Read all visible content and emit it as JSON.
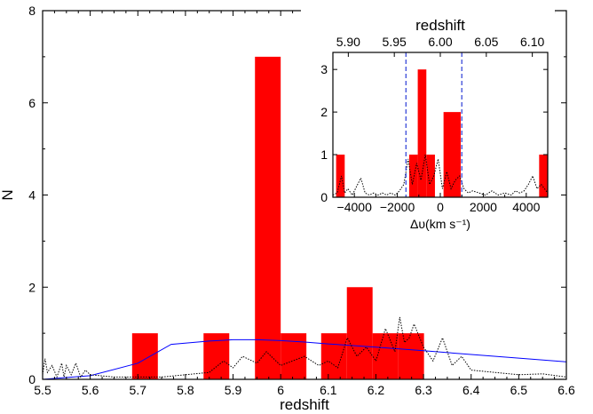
{
  "chart_data": [
    {
      "type": "bar",
      "xlabel": "redshift",
      "ylabel": "N",
      "xlim": [
        5.5,
        6.6
      ],
      "ylim": [
        0,
        8
      ],
      "xticks": [
        5.5,
        5.6,
        5.7,
        5.8,
        5.9,
        6.0,
        6.1,
        6.2,
        6.3,
        6.4,
        6.5,
        6.6
      ],
      "xtick_labels": [
        "5.5",
        "5.6",
        "5.7",
        "5.8",
        "5.9",
        "6",
        "6.1",
        "6.2",
        "6.3",
        "6.4",
        "6.5",
        "6.6"
      ],
      "yticks": [
        0,
        2,
        4,
        6,
        8
      ],
      "ytick_labels": [
        "0",
        "2",
        "4",
        "6",
        "8"
      ],
      "bar_width": 0.054,
      "bars": [
        {
          "x": 5.715,
          "value": 1
        },
        {
          "x": 5.865,
          "value": 1
        },
        {
          "x": 5.973,
          "value": 7
        },
        {
          "x": 6.027,
          "value": 1
        },
        {
          "x": 6.112,
          "value": 1
        },
        {
          "x": 6.166,
          "value": 2
        },
        {
          "x": 6.22,
          "value": 1
        },
        {
          "x": 6.274,
          "value": 1
        }
      ],
      "series": [
        {
          "style": "solid",
          "color": "#0000ff",
          "x": [
            5.5,
            5.6,
            5.7,
            5.77,
            5.85,
            5.9,
            5.95,
            6.0,
            6.05,
            6.1,
            6.2,
            6.3,
            6.4,
            6.5,
            6.6
          ],
          "y": [
            0.0,
            0.08,
            0.35,
            0.76,
            0.83,
            0.86,
            0.86,
            0.84,
            0.81,
            0.77,
            0.7,
            0.62,
            0.54,
            0.46,
            0.38
          ]
        },
        {
          "style": "dotted",
          "color": "#000000",
          "x": [
            5.5,
            5.505,
            5.51,
            5.52,
            5.53,
            5.54,
            5.545,
            5.55,
            5.56,
            5.57,
            5.58,
            5.59,
            5.6,
            5.65,
            5.7,
            5.75,
            5.8,
            5.85,
            5.88,
            5.9,
            5.92,
            5.95,
            5.97,
            6.0,
            6.05,
            6.08,
            6.1,
            6.12,
            6.14,
            6.16,
            6.18,
            6.2,
            6.22,
            6.24,
            6.25,
            6.26,
            6.27,
            6.28,
            6.3,
            6.32,
            6.34,
            6.36,
            6.38,
            6.4,
            6.45,
            6.5,
            6.55,
            6.6
          ],
          "y": [
            0.1,
            0.45,
            0.15,
            0.3,
            0.05,
            0.35,
            0.05,
            0.3,
            0.1,
            0.35,
            0.05,
            0.2,
            0.1,
            0.05,
            0.05,
            0.05,
            0.1,
            0.15,
            0.4,
            0.25,
            0.5,
            0.35,
            0.6,
            0.3,
            0.5,
            0.3,
            0.4,
            0.25,
            0.9,
            0.5,
            0.7,
            0.4,
            1.1,
            0.6,
            1.35,
            0.8,
            0.9,
            1.2,
            0.7,
            0.4,
            0.9,
            0.3,
            0.5,
            0.2,
            0.15,
            0.1,
            0.12,
            0.05
          ]
        }
      ]
    },
    {
      "type": "bar",
      "xlabel": "Δυ(km s⁻¹)",
      "x2label": "redshift",
      "xlim": [
        -5000,
        5000
      ],
      "ylim": [
        0,
        3.4
      ],
      "xticks": [
        -4000,
        -2000,
        0,
        2000,
        4000
      ],
      "xtick_labels": [
        "−4000",
        "−2000",
        "0",
        "2000",
        "4000"
      ],
      "yticks": [
        0,
        1,
        2,
        3
      ],
      "ytick_labels": [
        "0",
        "1",
        "2",
        "3"
      ],
      "x2ticks": [
        5.9,
        5.95,
        6.0,
        6.05,
        6.1
      ],
      "x2tick_labels": [
        "5.90",
        "5.95",
        "6.00",
        "6.05",
        "6.10"
      ],
      "dashed_lines_x": [
        -1600,
        1000
      ],
      "bars": [
        {
          "x0": -4850,
          "x1": -4450,
          "value": 1
        },
        {
          "x0": -1450,
          "x1": -1050,
          "value": 1
        },
        {
          "x0": -1050,
          "x1": -650,
          "value": 3
        },
        {
          "x0": -650,
          "x1": -250,
          "value": 1
        },
        {
          "x0": 150,
          "x1": 950,
          "value": 2
        },
        {
          "x0": 4600,
          "x1": 5000,
          "value": 1
        }
      ],
      "series": [
        {
          "style": "dotted",
          "color": "#000000",
          "x": [
            -5000,
            -4800,
            -4600,
            -4450,
            -4300,
            -4100,
            -3900,
            -3700,
            -3500,
            -3300,
            -3100,
            -2900,
            -2700,
            -2500,
            -2300,
            -2100,
            -1900,
            -1700,
            -1500,
            -1300,
            -1100,
            -900,
            -700,
            -500,
            -300,
            -100,
            100,
            300,
            500,
            700,
            900,
            1100,
            1300,
            1500,
            1800,
            2100,
            2400,
            2700,
            3000,
            3300,
            3500,
            3700,
            3900,
            4100,
            4300,
            4500,
            4700,
            5000
          ],
          "y": [
            0.05,
            0.1,
            0.5,
            0.1,
            0.2,
            0.05,
            0.25,
            0.45,
            0.1,
            0.05,
            0.1,
            0.05,
            0.1,
            0.05,
            0.1,
            0.05,
            0.15,
            0.3,
            0.9,
            0.3,
            0.8,
            0.4,
            1.0,
            0.3,
            0.5,
            0.9,
            0.2,
            0.6,
            0.2,
            0.4,
            0.5,
            0.2,
            0.1,
            0.15,
            0.1,
            0.05,
            0.15,
            0.05,
            0.1,
            0.05,
            0.15,
            0.1,
            0.15,
            0.3,
            0.5,
            0.2,
            0.3,
            0.1
          ]
        }
      ]
    }
  ]
}
